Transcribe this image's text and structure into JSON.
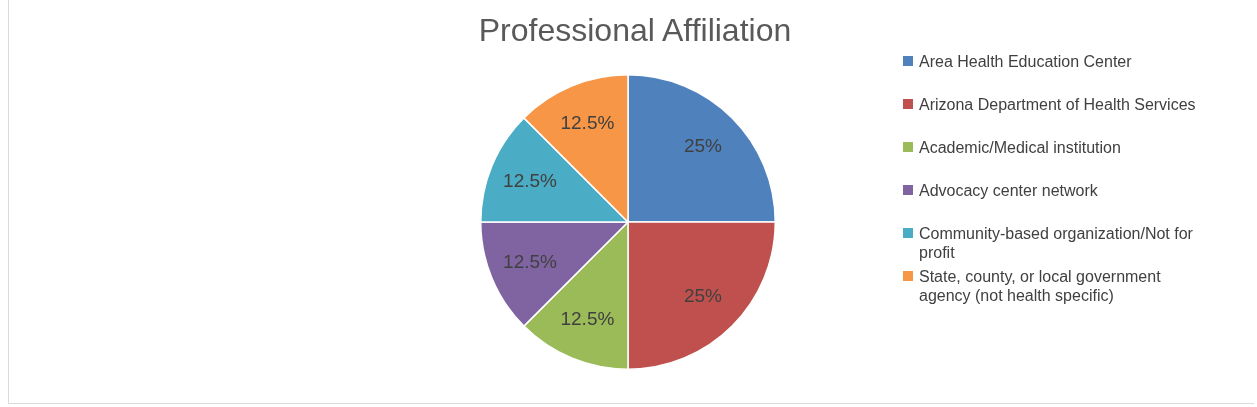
{
  "chart_data": {
    "type": "pie",
    "title": "Professional Affiliation",
    "categories": [
      "Area Health Education Center",
      "Arizona Department of Health Services",
      "Academic/Medical institution",
      "Advocacy center network",
      "Community-based organization/Not for profit",
      "State, county, or local government agency (not health specific)"
    ],
    "values": [
      25,
      25,
      12.5,
      12.5,
      12.5,
      12.5
    ],
    "colors": [
      "#4f81bd",
      "#c0504d",
      "#9bbb59",
      "#8064a2",
      "#4bacc6",
      "#f79646"
    ],
    "value_labels": [
      "25%",
      "25%",
      "12.5%",
      "12.5%",
      "12.5%",
      "12.5%"
    ],
    "legend": "right"
  }
}
